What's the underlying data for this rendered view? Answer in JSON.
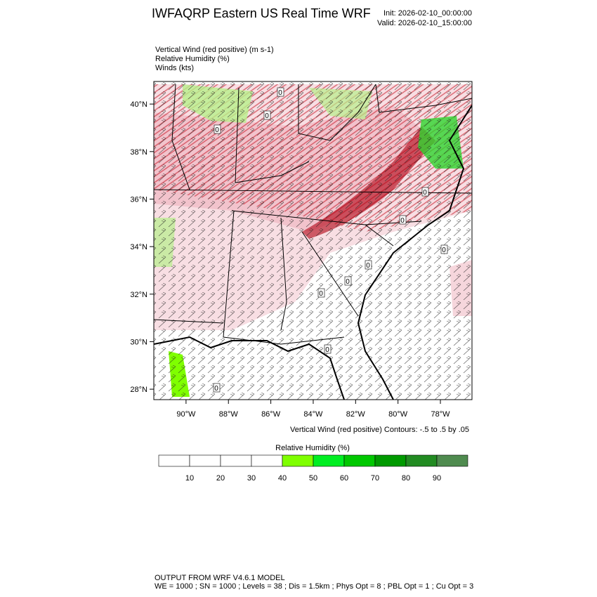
{
  "header": {
    "title": "IWFAQRP Eastern US Real Time WRF",
    "init": "Init: 2026-02-10_00:00:00",
    "valid": "Valid: 2026-02-10_15:00:00"
  },
  "fields": [
    "Vertical Wind (red positive)   (m s-1)",
    "Relative Humidity   (%)",
    "Winds   (kts)"
  ],
  "map": {
    "lat_range": [
      27.56,
      40.95
    ],
    "lon_range": [
      -91.52,
      -76.51
    ],
    "lat_ticks": [
      {
        "value": 28,
        "label": "28°N"
      },
      {
        "value": 30,
        "label": "30°N"
      },
      {
        "value": 32,
        "label": "32°N"
      },
      {
        "value": 34,
        "label": "34°N"
      },
      {
        "value": 36,
        "label": "36°N"
      },
      {
        "value": 38,
        "label": "38°N"
      },
      {
        "value": 40,
        "label": "40°N"
      }
    ],
    "lon_ticks": [
      {
        "value": -90,
        "label": "90°W"
      },
      {
        "value": -88,
        "label": "88°W"
      },
      {
        "value": -86,
        "label": "86°W"
      },
      {
        "value": -84,
        "label": "84°W"
      },
      {
        "value": -82,
        "label": "82°W"
      },
      {
        "value": -80,
        "label": "80°W"
      },
      {
        "value": -78,
        "label": "78°W"
      }
    ],
    "contour_label": "0",
    "contour_note": "Vertical Wind (red positive) Contours: -.5 to .5 by .05"
  },
  "colorbar": {
    "title": "Relative Humidity  (%)",
    "levels": [
      10,
      20,
      30,
      40,
      50,
      60,
      70,
      80,
      90
    ],
    "colors": [
      "#ffffff",
      "#ffffff",
      "#ffffff",
      "#ffffff",
      "#7fff00",
      "#00ee22",
      "#00c800",
      "#009a00",
      "#228b22",
      "#4f8b4f"
    ]
  },
  "footer": [
    "OUTPUT FROM WRF V4.6.1 MODEL",
    "WE = 1000 ; SN = 1000 ; Levels = 38 ; Dis = 1.5km ; Phys Opt = 8 ; PBL Opt = 1 ; Cu Opt = 3"
  ]
}
